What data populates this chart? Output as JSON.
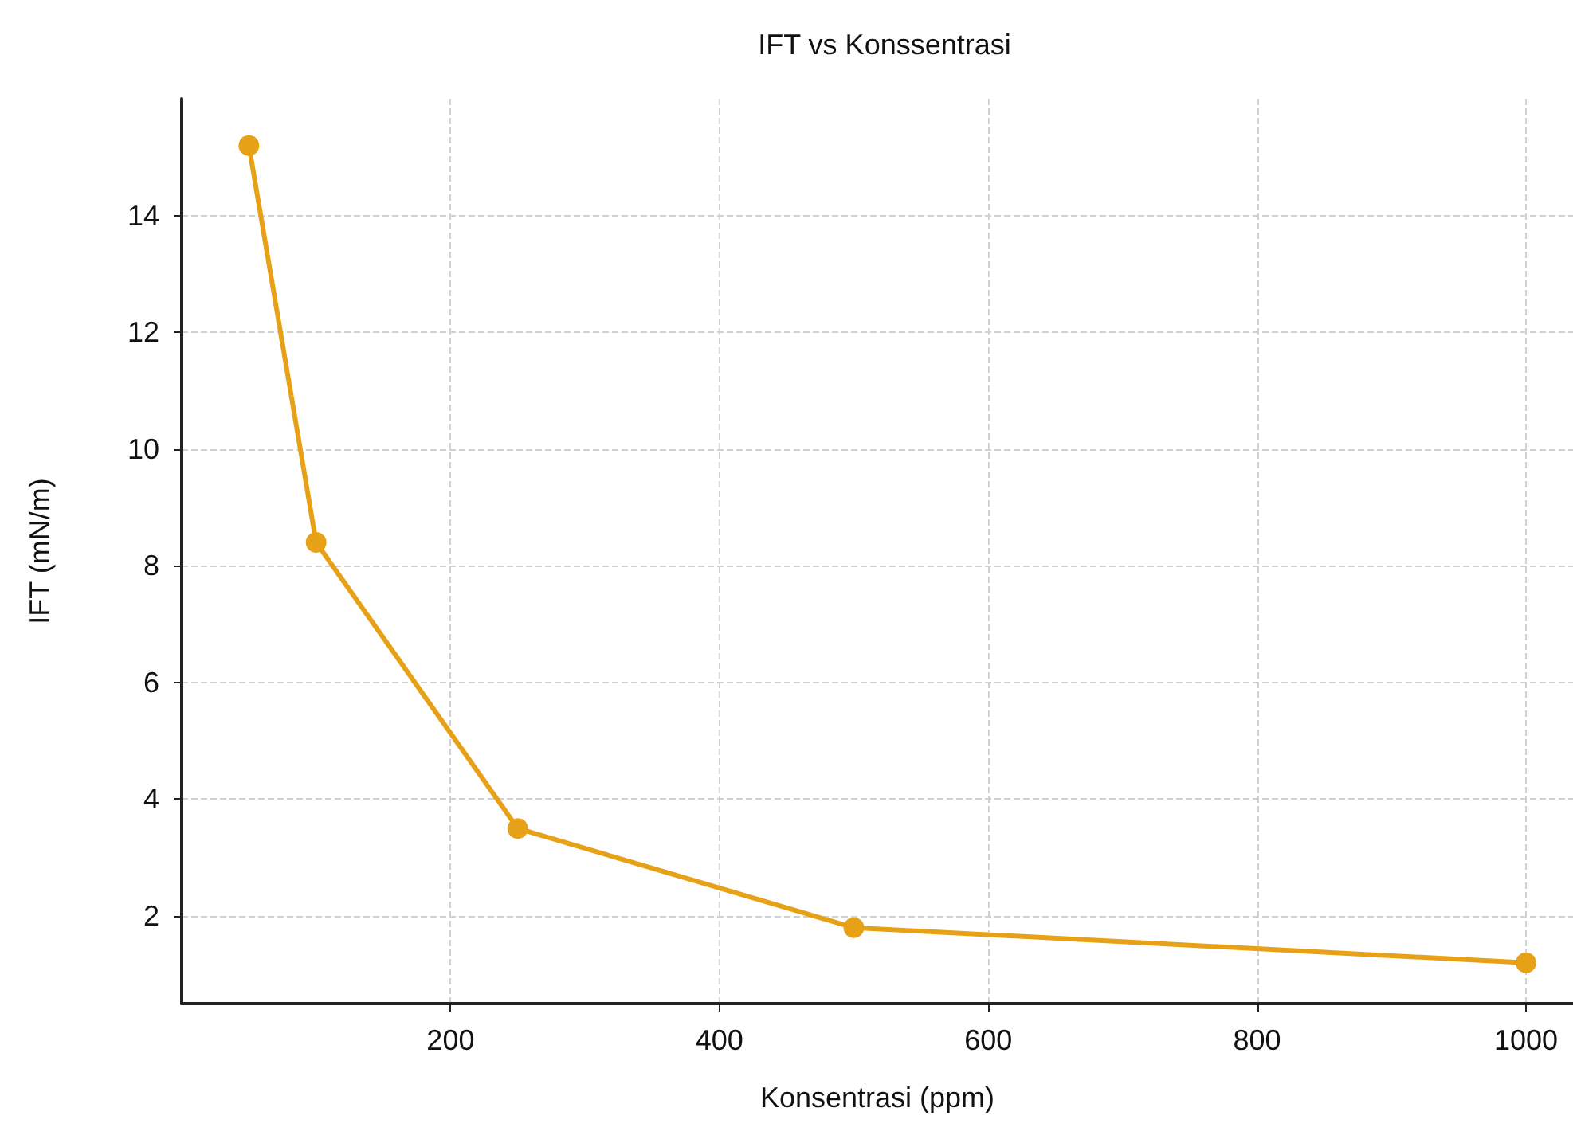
{
  "chart_data": {
    "type": "line",
    "title": "IFT vs Konssentrasi",
    "xlabel": "Konsentrasi (ppm)",
    "ylabel": "IFT (mN/m)",
    "x": [
      50,
      100,
      250,
      500,
      1000
    ],
    "series": [
      {
        "color": "#e6a117",
        "values": [
          15.2,
          8.4,
          3.5,
          1.8,
          1.2
        ]
      }
    ],
    "xlim": [
      0,
      1035
    ],
    "xticks": [
      200,
      400,
      600,
      800,
      1000
    ],
    "ylim": [
      0.5,
      16
    ],
    "yticks": [
      2,
      4,
      6,
      8,
      10,
      12,
      14
    ],
    "grid": true,
    "marker": "circle",
    "line_style": "solid"
  }
}
